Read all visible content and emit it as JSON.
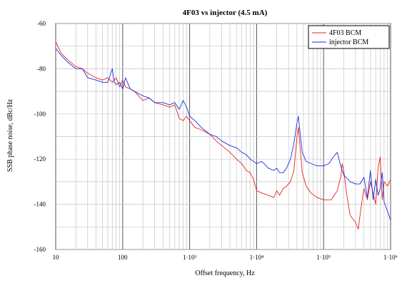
{
  "chart_data": {
    "type": "line",
    "title": "4F03 vs injector (4.5 mA)",
    "xlabel": "Offset frequency, Hz",
    "ylabel": "SSB phase noise, dBc/Hz",
    "x_scale": "log",
    "xlim": [
      10,
      1000000
    ],
    "ylim": [
      -160,
      -60
    ],
    "grid": true,
    "legend_position": "top-right",
    "x_ticks": [
      {
        "value": 10,
        "label": "10"
      },
      {
        "value": 100,
        "label": "100"
      },
      {
        "value": 1000,
        "label": "1·10³"
      },
      {
        "value": 10000,
        "label": "1·10⁴"
      },
      {
        "value": 100000,
        "label": "1·10⁵"
      },
      {
        "value": 1000000,
        "label": "1·10⁶"
      }
    ],
    "y_ticks": [
      {
        "value": -60,
        "label": "-60"
      },
      {
        "value": -80,
        "label": "-80"
      },
      {
        "value": -100,
        "label": "-100"
      },
      {
        "value": -120,
        "label": "-120"
      },
      {
        "value": -140,
        "label": "-140"
      },
      {
        "value": -160,
        "label": "-160"
      }
    ],
    "series": [
      {
        "name": "4F03 BCM",
        "color": "#e8231e",
        "points": [
          [
            10,
            -68
          ],
          [
            12,
            -73
          ],
          [
            15,
            -76
          ],
          [
            20,
            -79
          ],
          [
            25,
            -80
          ],
          [
            30,
            -82
          ],
          [
            40,
            -84
          ],
          [
            50,
            -85
          ],
          [
            60,
            -84
          ],
          [
            70,
            -86
          ],
          [
            80,
            -84
          ],
          [
            90,
            -88
          ],
          [
            100,
            -85
          ],
          [
            110,
            -88
          ],
          [
            130,
            -89
          ],
          [
            150,
            -90
          ],
          [
            200,
            -94
          ],
          [
            250,
            -93
          ],
          [
            300,
            -95
          ],
          [
            400,
            -96
          ],
          [
            500,
            -97
          ],
          [
            600,
            -96
          ],
          [
            700,
            -102
          ],
          [
            800,
            -103
          ],
          [
            900,
            -101
          ],
          [
            1000,
            -103
          ],
          [
            1200,
            -106
          ],
          [
            1500,
            -107
          ],
          [
            2000,
            -109
          ],
          [
            2500,
            -112
          ],
          [
            3000,
            -114
          ],
          [
            4000,
            -117
          ],
          [
            5000,
            -120
          ],
          [
            6000,
            -122
          ],
          [
            7000,
            -125
          ],
          [
            8000,
            -126
          ],
          [
            9000,
            -129
          ],
          [
            10000,
            -134
          ],
          [
            12000,
            -135
          ],
          [
            15000,
            -136
          ],
          [
            18000,
            -137
          ],
          [
            20000,
            -134
          ],
          [
            22000,
            -136
          ],
          [
            25000,
            -133
          ],
          [
            28000,
            -132
          ],
          [
            32000,
            -130
          ],
          [
            36000,
            -125
          ],
          [
            40000,
            -110
          ],
          [
            42000,
            -106
          ],
          [
            44000,
            -113
          ],
          [
            48000,
            -126
          ],
          [
            55000,
            -132
          ],
          [
            65000,
            -135
          ],
          [
            80000,
            -137
          ],
          [
            100000,
            -138
          ],
          [
            130000,
            -138
          ],
          [
            160000,
            -134
          ],
          [
            180000,
            -128
          ],
          [
            190000,
            -122
          ],
          [
            200000,
            -125
          ],
          [
            220000,
            -135
          ],
          [
            250000,
            -145
          ],
          [
            300000,
            -148
          ],
          [
            330000,
            -151
          ],
          [
            360000,
            -142
          ],
          [
            400000,
            -133
          ],
          [
            450000,
            -138
          ],
          [
            500000,
            -130
          ],
          [
            600000,
            -140
          ],
          [
            650000,
            -124
          ],
          [
            700000,
            -119
          ],
          [
            750000,
            -138
          ],
          [
            800000,
            -130
          ],
          [
            900000,
            -132
          ],
          [
            1000000,
            -129
          ]
        ]
      },
      {
        "name": "injector BCM",
        "color": "#1a2ee0",
        "points": [
          [
            10,
            -71
          ],
          [
            12,
            -74
          ],
          [
            15,
            -77
          ],
          [
            20,
            -80
          ],
          [
            25,
            -80
          ],
          [
            30,
            -84
          ],
          [
            40,
            -85
          ],
          [
            50,
            -86
          ],
          [
            60,
            -86
          ],
          [
            70,
            -80
          ],
          [
            75,
            -86
          ],
          [
            80,
            -87
          ],
          [
            90,
            -86
          ],
          [
            100,
            -89
          ],
          [
            110,
            -84
          ],
          [
            130,
            -89
          ],
          [
            150,
            -90
          ],
          [
            200,
            -92
          ],
          [
            250,
            -93
          ],
          [
            300,
            -95
          ],
          [
            400,
            -95
          ],
          [
            500,
            -96
          ],
          [
            600,
            -95
          ],
          [
            700,
            -98
          ],
          [
            800,
            -94
          ],
          [
            900,
            -97
          ],
          [
            1000,
            -101
          ],
          [
            1200,
            -103
          ],
          [
            1500,
            -106
          ],
          [
            2000,
            -109
          ],
          [
            2500,
            -110
          ],
          [
            3000,
            -112
          ],
          [
            4000,
            -114
          ],
          [
            5000,
            -115
          ],
          [
            6000,
            -117
          ],
          [
            7000,
            -118
          ],
          [
            8000,
            -120
          ],
          [
            9000,
            -121
          ],
          [
            10000,
            -122
          ],
          [
            12000,
            -121
          ],
          [
            15000,
            -124
          ],
          [
            18000,
            -125
          ],
          [
            20000,
            -124
          ],
          [
            22000,
            -126
          ],
          [
            25000,
            -126
          ],
          [
            28000,
            -124
          ],
          [
            32000,
            -120
          ],
          [
            36000,
            -113
          ],
          [
            40000,
            -104
          ],
          [
            42000,
            -101
          ],
          [
            44000,
            -107
          ],
          [
            48000,
            -117
          ],
          [
            55000,
            -121
          ],
          [
            65000,
            -122
          ],
          [
            80000,
            -123
          ],
          [
            100000,
            -123
          ],
          [
            120000,
            -122
          ],
          [
            140000,
            -119
          ],
          [
            160000,
            -117
          ],
          [
            180000,
            -123
          ],
          [
            200000,
            -127
          ],
          [
            250000,
            -130
          ],
          [
            300000,
            -131
          ],
          [
            350000,
            -131
          ],
          [
            400000,
            -128
          ],
          [
            450000,
            -137
          ],
          [
            500000,
            -125
          ],
          [
            550000,
            -138
          ],
          [
            600000,
            -129
          ],
          [
            650000,
            -136
          ],
          [
            700000,
            -133
          ],
          [
            750000,
            -126
          ],
          [
            800000,
            -139
          ],
          [
            900000,
            -143
          ],
          [
            1000000,
            -147
          ]
        ]
      }
    ]
  }
}
